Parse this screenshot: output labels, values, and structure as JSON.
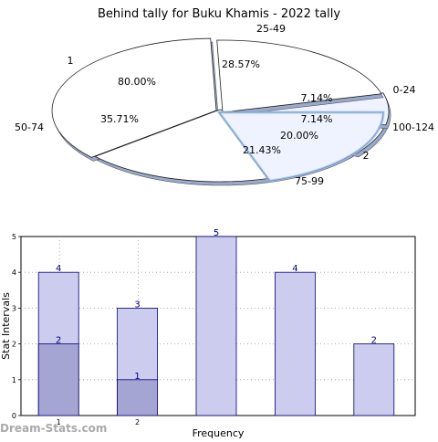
{
  "watermark": "Dream-Stats.com",
  "chart_data": [
    {
      "type": "pie",
      "title": "Behind tally for Buku Khamis - 2022 tally",
      "rings": [
        {
          "name": "1",
          "slices": [
            {
              "label": "50-74",
              "pct_text": "35.71%",
              "value": 35.71
            },
            {
              "label": "25-49",
              "pct_text": "28.57%",
              "value": 28.57
            },
            {
              "label": "0-24",
              "pct_text": "7.14%",
              "value": 7.14
            },
            {
              "label": "100-124",
              "pct_text": "7.14%",
              "value": 7.14
            },
            {
              "label": "75-99",
              "pct_text": "21.43%",
              "value": 21.43
            }
          ]
        },
        {
          "name": "2",
          "slices": [
            {
              "label": "",
              "pct_text": "80.00%",
              "value": 80.0
            },
            {
              "label": "",
              "pct_text": "20.00%",
              "value": 20.0
            }
          ]
        }
      ]
    },
    {
      "type": "bar",
      "xlabel": "Frequency",
      "ylabel": "Stat Intervals",
      "ylim": [
        0,
        5
      ],
      "yticks": [
        "0",
        "1",
        "2",
        "3",
        "4",
        "5"
      ],
      "categories": [
        "1",
        "2",
        "",
        "",
        ""
      ],
      "series": [
        {
          "name": "",
          "values": [
            4,
            3,
            5,
            4,
            2
          ]
        },
        {
          "name": "",
          "values": [
            2,
            1,
            null,
            null,
            null
          ]
        }
      ]
    }
  ]
}
